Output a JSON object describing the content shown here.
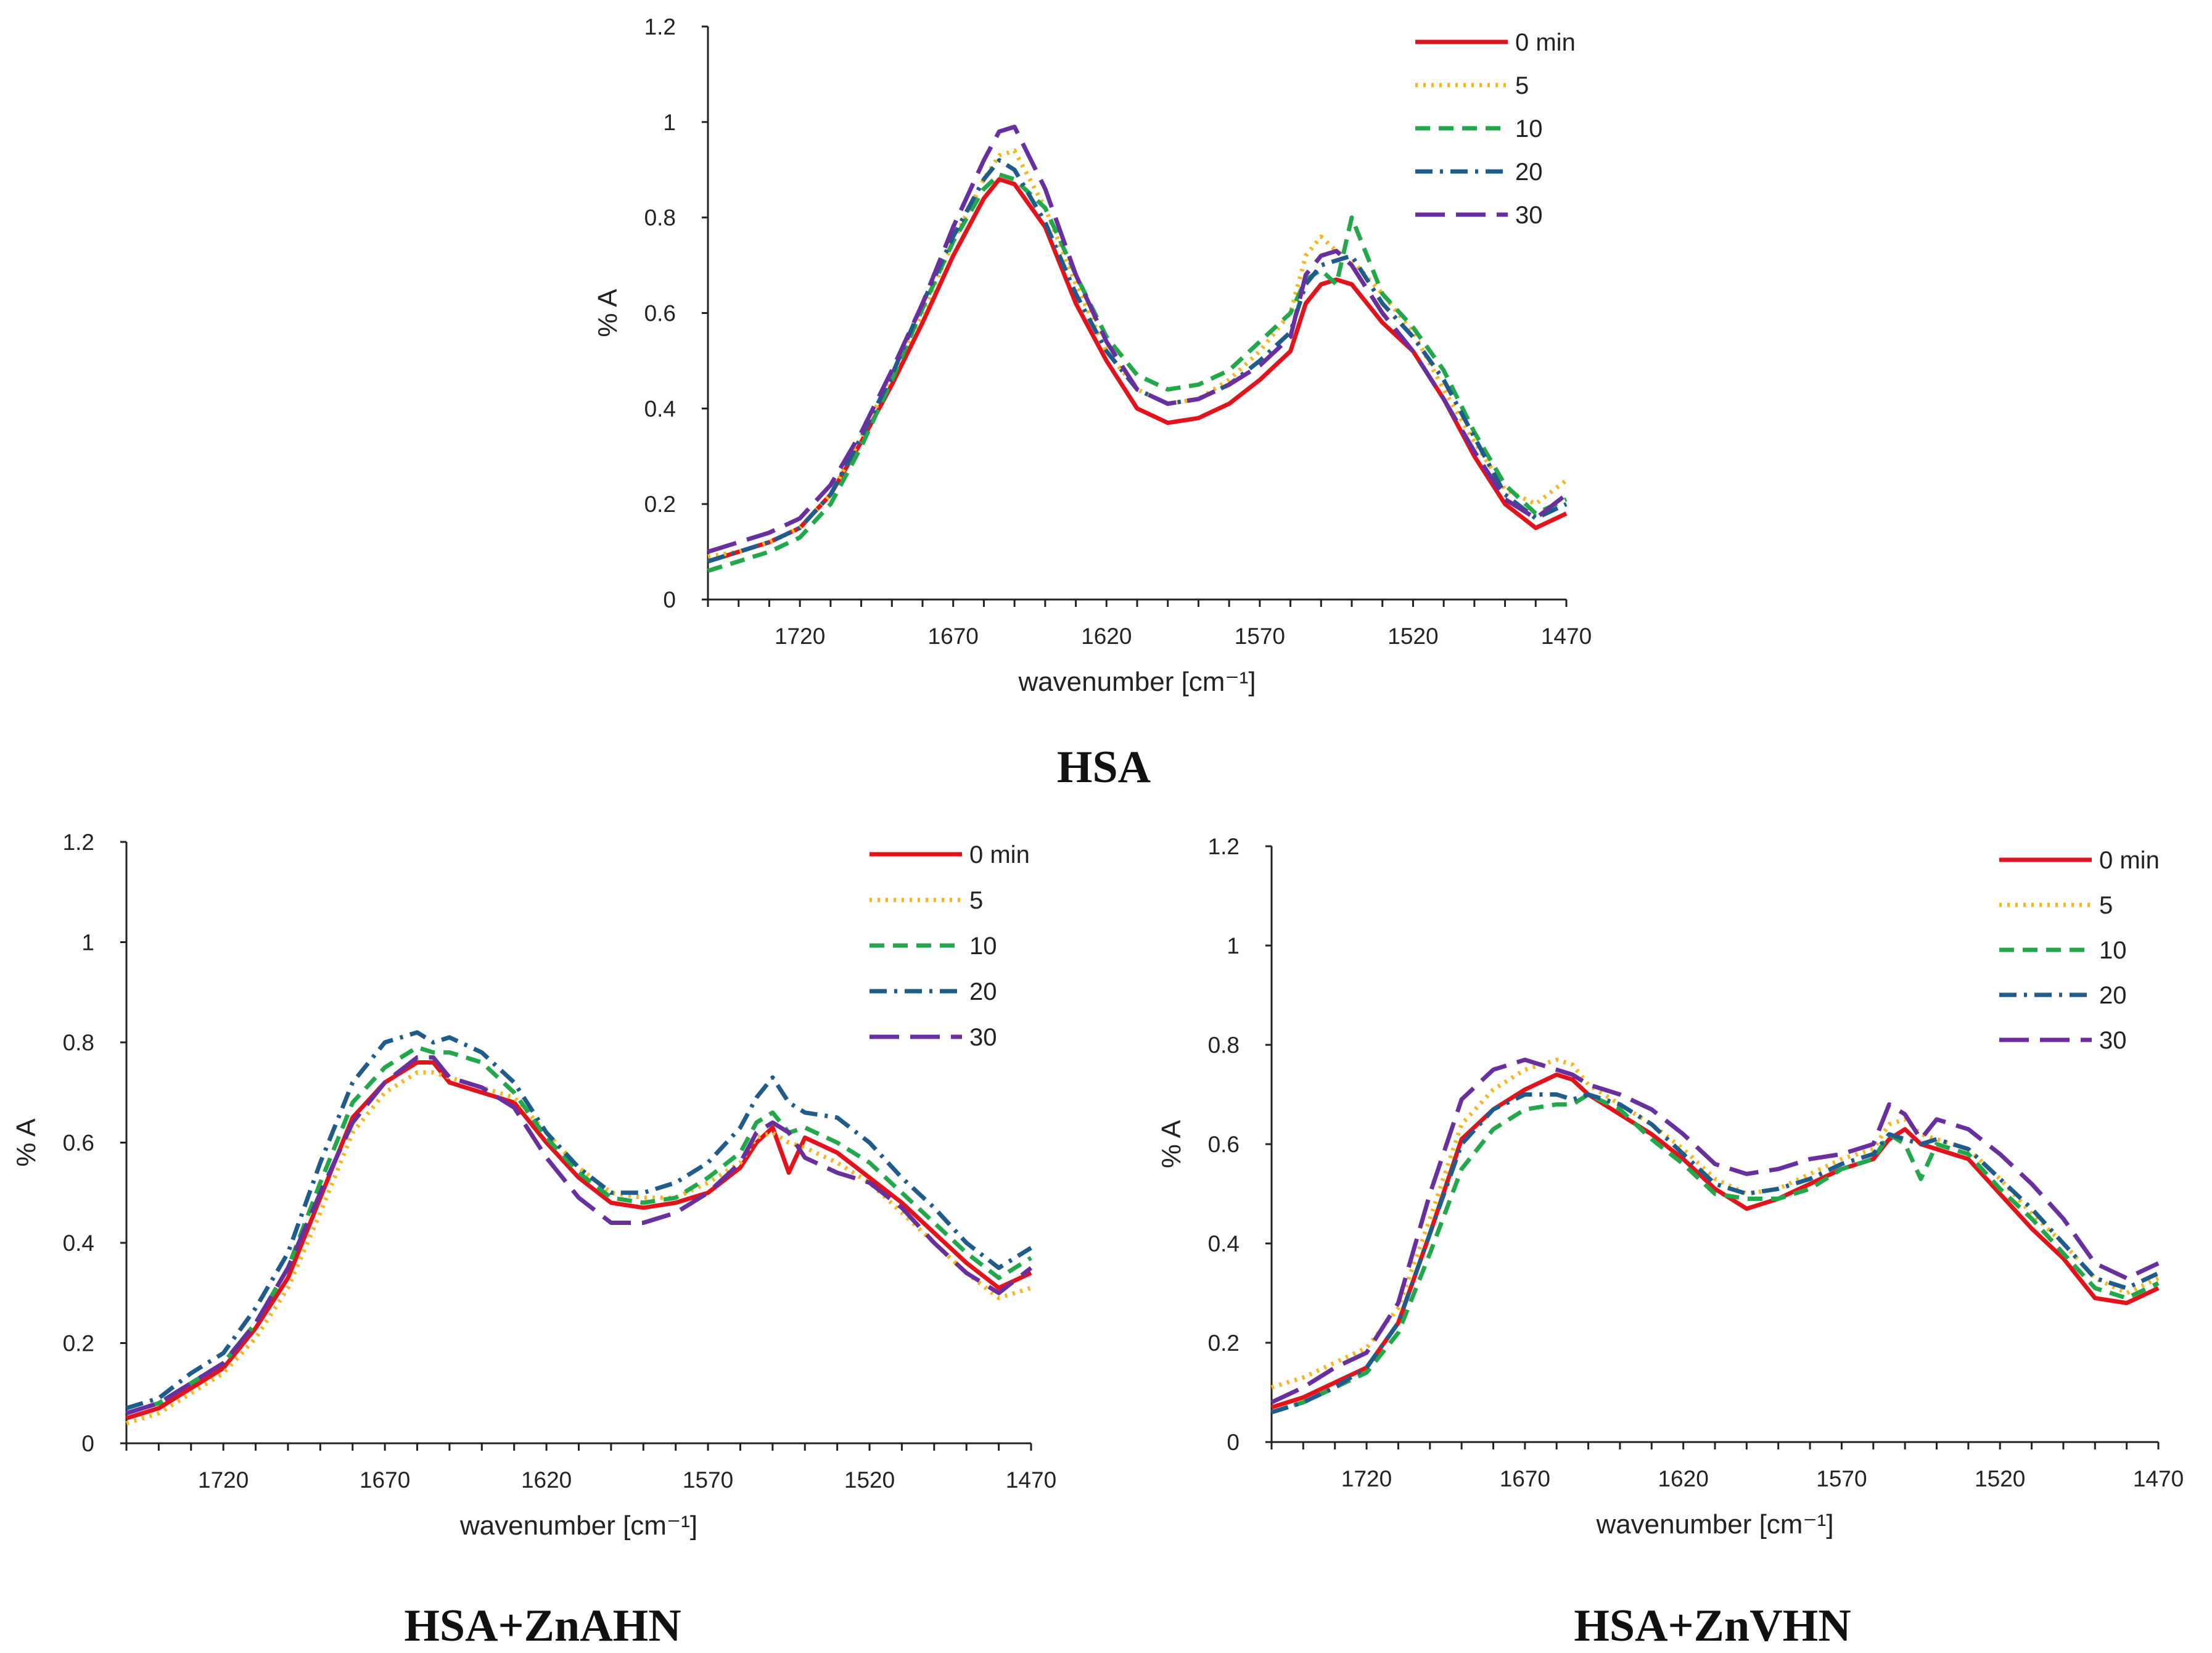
{
  "figure": {
    "series_style": {
      "0 min": {
        "color": "#e3131b",
        "dash": "solid"
      },
      "5": {
        "color": "#f2b71d",
        "dash": "dotted"
      },
      "10": {
        "color": "#22a84a",
        "dash": "dashed"
      },
      "20": {
        "color": "#1f5c8c",
        "dash": "dashdot"
      },
      "30": {
        "color": "#6a2f9e",
        "dash": "longdash"
      }
    }
  },
  "chart_data": [
    {
      "type": "line",
      "title": "HSA",
      "xlabel": "wavenumber [cm⁻¹]",
      "ylabel": "% A",
      "xlim": [
        1750,
        1470
      ],
      "ylim": [
        0,
        1.2
      ],
      "x_ticks": [
        1720,
        1670,
        1620,
        1570,
        1520,
        1470
      ],
      "y_ticks": [
        0,
        0.2,
        0.4,
        0.6,
        0.8,
        1,
        1.2
      ],
      "legend": [
        "0 min",
        "5",
        "10",
        "20",
        "30"
      ],
      "x": [
        1750,
        1740,
        1730,
        1720,
        1710,
        1700,
        1690,
        1680,
        1670,
        1660,
        1655,
        1650,
        1640,
        1630,
        1620,
        1610,
        1600,
        1590,
        1580,
        1570,
        1560,
        1555,
        1550,
        1545,
        1540,
        1530,
        1520,
        1510,
        1500,
        1490,
        1480,
        1470
      ],
      "series": [
        {
          "name": "0 min",
          "values": [
            0.08,
            0.1,
            0.12,
            0.15,
            0.22,
            0.33,
            0.45,
            0.58,
            0.72,
            0.84,
            0.88,
            0.87,
            0.78,
            0.62,
            0.5,
            0.4,
            0.37,
            0.38,
            0.41,
            0.46,
            0.52,
            0.62,
            0.66,
            0.67,
            0.66,
            0.58,
            0.52,
            0.42,
            0.3,
            0.2,
            0.15,
            0.18
          ]
        },
        {
          "name": "5",
          "values": [
            0.09,
            0.1,
            0.12,
            0.15,
            0.22,
            0.34,
            0.47,
            0.6,
            0.75,
            0.88,
            0.93,
            0.94,
            0.82,
            0.66,
            0.52,
            0.44,
            0.41,
            0.42,
            0.46,
            0.52,
            0.6,
            0.72,
            0.76,
            0.73,
            0.71,
            0.64,
            0.56,
            0.44,
            0.33,
            0.23,
            0.2,
            0.25
          ]
        },
        {
          "name": "10",
          "values": [
            0.06,
            0.08,
            0.1,
            0.13,
            0.2,
            0.32,
            0.46,
            0.61,
            0.75,
            0.86,
            0.89,
            0.88,
            0.82,
            0.68,
            0.55,
            0.47,
            0.44,
            0.45,
            0.48,
            0.54,
            0.6,
            0.67,
            0.69,
            0.66,
            0.8,
            0.64,
            0.57,
            0.48,
            0.35,
            0.24,
            0.18,
            0.21
          ]
        },
        {
          "name": "20",
          "values": [
            0.08,
            0.1,
            0.12,
            0.15,
            0.22,
            0.34,
            0.47,
            0.62,
            0.76,
            0.88,
            0.92,
            0.9,
            0.79,
            0.64,
            0.52,
            0.44,
            0.41,
            0.42,
            0.45,
            0.5,
            0.56,
            0.66,
            0.7,
            0.71,
            0.72,
            0.62,
            0.55,
            0.46,
            0.34,
            0.22,
            0.17,
            0.2
          ]
        },
        {
          "name": "30",
          "values": [
            0.1,
            0.12,
            0.14,
            0.17,
            0.24,
            0.35,
            0.48,
            0.62,
            0.78,
            0.92,
            0.98,
            0.99,
            0.86,
            0.68,
            0.54,
            0.44,
            0.41,
            0.42,
            0.45,
            0.49,
            0.55,
            0.68,
            0.72,
            0.73,
            0.7,
            0.6,
            0.52,
            0.42,
            0.31,
            0.21,
            0.17,
            0.22
          ]
        }
      ]
    },
    {
      "type": "line",
      "title": "HSA+ZnAHN",
      "xlabel": "wavenumber [cm⁻¹]",
      "ylabel": "% A",
      "xlim": [
        1750,
        1470
      ],
      "ylim": [
        0,
        1.2
      ],
      "x_ticks": [
        1720,
        1670,
        1620,
        1570,
        1520,
        1470
      ],
      "y_ticks": [
        0,
        0.2,
        0.4,
        0.6,
        0.8,
        1,
        1.2
      ],
      "legend": [
        "0 min",
        "5",
        "10",
        "20",
        "30"
      ],
      "x": [
        1750,
        1740,
        1730,
        1720,
        1710,
        1700,
        1690,
        1680,
        1670,
        1660,
        1655,
        1650,
        1640,
        1630,
        1620,
        1610,
        1600,
        1590,
        1580,
        1570,
        1560,
        1555,
        1550,
        1545,
        1540,
        1530,
        1520,
        1510,
        1500,
        1490,
        1480,
        1470
      ],
      "series": [
        {
          "name": "0 min",
          "values": [
            0.05,
            0.07,
            0.11,
            0.15,
            0.23,
            0.33,
            0.49,
            0.65,
            0.72,
            0.76,
            0.76,
            0.72,
            0.7,
            0.68,
            0.6,
            0.53,
            0.48,
            0.47,
            0.48,
            0.5,
            0.55,
            0.6,
            0.63,
            0.54,
            0.61,
            0.58,
            0.53,
            0.48,
            0.42,
            0.36,
            0.31,
            0.34
          ]
        },
        {
          "name": "5",
          "values": [
            0.04,
            0.06,
            0.1,
            0.14,
            0.21,
            0.31,
            0.46,
            0.62,
            0.7,
            0.74,
            0.74,
            0.73,
            0.71,
            0.69,
            0.62,
            0.55,
            0.5,
            0.49,
            0.49,
            0.52,
            0.56,
            0.61,
            0.62,
            0.6,
            0.59,
            0.56,
            0.52,
            0.46,
            0.4,
            0.34,
            0.29,
            0.31
          ]
        },
        {
          "name": "10",
          "values": [
            0.06,
            0.08,
            0.12,
            0.16,
            0.24,
            0.35,
            0.52,
            0.68,
            0.75,
            0.79,
            0.78,
            0.78,
            0.76,
            0.7,
            0.61,
            0.54,
            0.49,
            0.48,
            0.49,
            0.53,
            0.58,
            0.64,
            0.66,
            0.62,
            0.63,
            0.6,
            0.56,
            0.5,
            0.44,
            0.38,
            0.33,
            0.37
          ]
        },
        {
          "name": "20",
          "values": [
            0.07,
            0.09,
            0.14,
            0.18,
            0.27,
            0.38,
            0.56,
            0.72,
            0.8,
            0.82,
            0.8,
            0.81,
            0.78,
            0.72,
            0.62,
            0.55,
            0.5,
            0.5,
            0.52,
            0.56,
            0.63,
            0.69,
            0.73,
            0.68,
            0.66,
            0.65,
            0.6,
            0.53,
            0.47,
            0.4,
            0.35,
            0.39
          ]
        },
        {
          "name": "30",
          "values": [
            0.06,
            0.08,
            0.12,
            0.16,
            0.24,
            0.35,
            0.5,
            0.64,
            0.72,
            0.77,
            0.77,
            0.73,
            0.71,
            0.67,
            0.57,
            0.49,
            0.44,
            0.44,
            0.46,
            0.5,
            0.56,
            0.62,
            0.64,
            0.62,
            0.57,
            0.54,
            0.52,
            0.47,
            0.4,
            0.34,
            0.3,
            0.35
          ]
        }
      ]
    },
    {
      "type": "line",
      "title": "HSA+ZnVHN",
      "xlabel": "wavenumber [cm⁻¹]",
      "ylabel": "% A",
      "xlim": [
        1750,
        1470
      ],
      "ylim": [
        0,
        1.2
      ],
      "x_ticks": [
        1720,
        1670,
        1620,
        1570,
        1520,
        1470
      ],
      "y_ticks": [
        0,
        0.2,
        0.4,
        0.6,
        0.8,
        1,
        1.2
      ],
      "legend": [
        "0 min",
        "5",
        "10",
        "20",
        "30"
      ],
      "x": [
        1750,
        1740,
        1730,
        1720,
        1710,
        1700,
        1690,
        1680,
        1670,
        1660,
        1655,
        1650,
        1640,
        1630,
        1620,
        1610,
        1600,
        1590,
        1580,
        1570,
        1560,
        1555,
        1550,
        1545,
        1540,
        1530,
        1520,
        1510,
        1500,
        1490,
        1480,
        1470
      ],
      "series": [
        {
          "name": "0 min",
          "values": [
            0.07,
            0.09,
            0.12,
            0.15,
            0.24,
            0.42,
            0.61,
            0.67,
            0.71,
            0.74,
            0.73,
            0.7,
            0.66,
            0.62,
            0.57,
            0.51,
            0.47,
            0.49,
            0.52,
            0.55,
            0.57,
            0.61,
            0.63,
            0.6,
            0.59,
            0.57,
            0.5,
            0.43,
            0.37,
            0.29,
            0.28,
            0.31
          ]
        },
        {
          "name": "5",
          "values": [
            0.11,
            0.13,
            0.16,
            0.19,
            0.27,
            0.45,
            0.64,
            0.71,
            0.75,
            0.77,
            0.76,
            0.72,
            0.68,
            0.64,
            0.59,
            0.53,
            0.5,
            0.51,
            0.54,
            0.57,
            0.59,
            0.64,
            0.65,
            0.62,
            0.61,
            0.59,
            0.53,
            0.46,
            0.4,
            0.33,
            0.3,
            0.33
          ]
        },
        {
          "name": "10",
          "values": [
            0.06,
            0.08,
            0.11,
            0.14,
            0.22,
            0.38,
            0.55,
            0.63,
            0.67,
            0.68,
            0.68,
            0.7,
            0.67,
            0.61,
            0.56,
            0.5,
            0.49,
            0.49,
            0.51,
            0.55,
            0.57,
            0.62,
            0.6,
            0.53,
            0.6,
            0.58,
            0.51,
            0.45,
            0.38,
            0.31,
            0.29,
            0.32
          ]
        },
        {
          "name": "20",
          "values": [
            0.06,
            0.08,
            0.11,
            0.15,
            0.24,
            0.42,
            0.6,
            0.67,
            0.7,
            0.7,
            0.69,
            0.7,
            0.68,
            0.64,
            0.58,
            0.52,
            0.5,
            0.51,
            0.53,
            0.56,
            0.58,
            0.62,
            0.61,
            0.6,
            0.61,
            0.59,
            0.53,
            0.47,
            0.4,
            0.33,
            0.31,
            0.34
          ]
        },
        {
          "name": "30",
          "values": [
            0.08,
            0.11,
            0.15,
            0.18,
            0.28,
            0.5,
            0.69,
            0.75,
            0.77,
            0.75,
            0.74,
            0.72,
            0.7,
            0.67,
            0.62,
            0.56,
            0.54,
            0.55,
            0.57,
            0.58,
            0.6,
            0.68,
            0.66,
            0.61,
            0.65,
            0.63,
            0.58,
            0.52,
            0.45,
            0.36,
            0.33,
            0.36
          ]
        }
      ]
    }
  ]
}
